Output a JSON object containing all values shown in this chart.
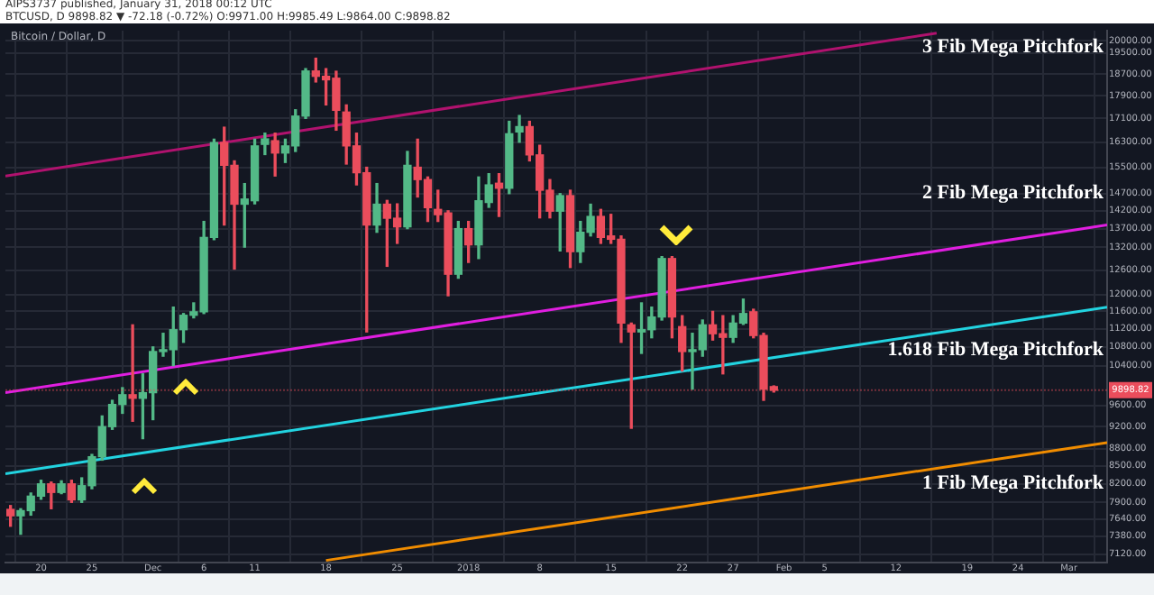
{
  "chart_data": {
    "type": "candlestick",
    "title": "Bitcoin / Dollar, D",
    "annotations": [
      "AIPS3737 published, January 31, 2018 00:12 UTC",
      "BTCUSD, D 9898.82 ▼ -72.18 (-0.72%) O:9971.00 H:9985.49 L:9864.00 C:9898.82",
      "3 Fib Mega Pitchfork",
      "2 Fib Mega Pitchfork",
      "1.618 Fib Mega Pitchfork",
      "1 Fib Mega Pitchfork"
    ],
    "x": [
      "2017-11-17",
      "2017-11-18",
      "2017-11-19",
      "2017-11-20",
      "2017-11-21",
      "2017-11-22",
      "2017-11-23",
      "2017-11-24",
      "2017-11-25",
      "2017-11-26",
      "2017-11-27",
      "2017-11-28",
      "2017-11-29",
      "2017-11-30",
      "2017-12-01",
      "2017-12-02",
      "2017-12-03",
      "2017-12-04",
      "2017-12-05",
      "2017-12-06",
      "2017-12-07",
      "2017-12-08",
      "2017-12-09",
      "2017-12-10",
      "2017-12-11",
      "2017-12-12",
      "2017-12-13",
      "2017-12-14",
      "2017-12-15",
      "2017-12-16",
      "2017-12-17",
      "2017-12-18",
      "2017-12-19",
      "2017-12-20",
      "2017-12-21",
      "2017-12-22",
      "2017-12-23",
      "2017-12-24",
      "2017-12-25",
      "2017-12-26",
      "2017-12-27",
      "2017-12-28",
      "2017-12-29",
      "2017-12-30",
      "2017-12-31",
      "2018-01-01",
      "2018-01-02",
      "2018-01-03",
      "2018-01-04",
      "2018-01-05",
      "2018-01-06",
      "2018-01-07",
      "2018-01-08",
      "2018-01-09",
      "2018-01-10",
      "2018-01-11",
      "2018-01-12",
      "2018-01-13",
      "2018-01-14",
      "2018-01-15",
      "2018-01-16",
      "2018-01-17",
      "2018-01-18",
      "2018-01-19",
      "2018-01-20",
      "2018-01-21",
      "2018-01-22",
      "2018-01-23",
      "2018-01-24",
      "2018-01-25",
      "2018-01-26",
      "2018-01-27",
      "2018-01-28",
      "2018-01-29",
      "2018-01-30",
      "2018-01-31"
    ],
    "ohlc": [
      [
        7790,
        7850,
        7530,
        7690
      ],
      [
        7690,
        7800,
        7410,
        7770
      ],
      [
        7770,
        8050,
        7700,
        8000
      ],
      [
        8000,
        8260,
        7950,
        8200
      ],
      [
        8200,
        8230,
        7800,
        8060
      ],
      [
        8060,
        8250,
        8040,
        8200
      ],
      [
        8200,
        8260,
        7900,
        7940
      ],
      [
        7940,
        8300,
        7900,
        8170
      ],
      [
        8170,
        8700,
        8120,
        8660
      ],
      [
        8660,
        9400,
        8600,
        9200
      ],
      [
        9200,
        9700,
        9150,
        9620
      ],
      [
        9620,
        9950,
        9450,
        9810
      ],
      [
        9810,
        11290,
        9300,
        9740
      ],
      [
        9740,
        10230,
        8980,
        9850
      ],
      [
        9850,
        10800,
        9330,
        10700
      ],
      [
        10700,
        11100,
        10600,
        10740
      ],
      [
        10740,
        11700,
        10400,
        11180
      ],
      [
        11180,
        11550,
        10900,
        11510
      ],
      [
        11510,
        11800,
        11450,
        11590
      ],
      [
        11590,
        13900,
        11550,
        13460
      ],
      [
        13460,
        16400,
        13400,
        16290
      ],
      [
        16290,
        16800,
        13800,
        15560
      ],
      [
        15560,
        15700,
        12630,
        14390
      ],
      [
        14390,
        15000,
        13200,
        14540
      ],
      [
        14490,
        16400,
        14400,
        16180
      ],
      [
        16230,
        16600,
        15900,
        16410
      ],
      [
        16350,
        16600,
        15230,
        15950
      ],
      [
        15950,
        16400,
        15650,
        16180
      ],
      [
        16180,
        17400,
        16000,
        17180
      ],
      [
        17180,
        18900,
        17100,
        18810
      ],
      [
        18810,
        19300,
        18400,
        18610
      ],
      [
        18610,
        18900,
        17570,
        18480
      ],
      [
        18540,
        18800,
        16700,
        17380
      ],
      [
        17320,
        17570,
        15600,
        16180
      ],
      [
        16180,
        16600,
        14960,
        15330
      ],
      [
        15330,
        15500,
        11130,
        13800
      ],
      [
        13800,
        15000,
        13600,
        14390
      ],
      [
        14390,
        14500,
        12700,
        13990
      ],
      [
        13990,
        14400,
        13300,
        13750
      ],
      [
        13750,
        16000,
        13700,
        15560
      ],
      [
        15500,
        16400,
        14600,
        15120
      ],
      [
        15120,
        15200,
        13900,
        14290
      ],
      [
        14240,
        14800,
        13900,
        14090
      ],
      [
        14140,
        14200,
        11970,
        12500
      ],
      [
        12500,
        13900,
        12400,
        13700
      ],
      [
        13700,
        13900,
        12800,
        13260
      ],
      [
        13260,
        15200,
        12900,
        14490
      ],
      [
        14440,
        15300,
        14300,
        14960
      ],
      [
        15010,
        15300,
        14040,
        14860
      ],
      [
        14860,
        17000,
        14700,
        16580
      ],
      [
        16640,
        17200,
        16300,
        16820
      ],
      [
        16820,
        17000,
        15700,
        15890
      ],
      [
        15890,
        16200,
        14000,
        14800
      ],
      [
        14800,
        15120,
        14000,
        14190
      ],
      [
        14190,
        14700,
        13100,
        14640
      ],
      [
        14640,
        14800,
        12670,
        13080
      ],
      [
        13080,
        13900,
        12800,
        13600
      ],
      [
        13600,
        14390,
        13500,
        14040
      ],
      [
        14040,
        14240,
        13300,
        13460
      ],
      [
        13500,
        14100,
        13300,
        13410
      ],
      [
        13410,
        13500,
        10900,
        11330
      ],
      [
        11290,
        11330,
        9170,
        11130
      ],
      [
        11130,
        11800,
        10660,
        11180
      ],
      [
        11180,
        11700,
        11000,
        11470
      ],
      [
        11470,
        12950,
        11400,
        12900
      ],
      [
        12900,
        12950,
        11000,
        11470
      ],
      [
        11250,
        11500,
        10290,
        10700
      ],
      [
        10700,
        11100,
        9920,
        10740
      ],
      [
        10740,
        11400,
        10600,
        11290
      ],
      [
        11290,
        11600,
        10950,
        11090
      ],
      [
        11090,
        11500,
        10230,
        11010
      ],
      [
        11010,
        11500,
        10900,
        11330
      ],
      [
        11330,
        11890,
        11300,
        11550
      ],
      [
        11590,
        11650,
        11000,
        11050
      ],
      [
        11050,
        11100,
        9700,
        9920
      ],
      [
        9971,
        9985.49,
        9864,
        9898.82
      ]
    ],
    "colors": [
      "#eb4d5c",
      "#53b987",
      "#53b987",
      "#53b987",
      "#eb4d5c",
      "#53b987",
      "#eb4d5c",
      "#53b987",
      "#53b987",
      "#53b987",
      "#53b987",
      "#53b987",
      "#eb4d5c",
      "#53b987",
      "#53b987",
      "#53b987",
      "#53b987",
      "#53b987",
      "#53b987",
      "#53b987",
      "#53b987",
      "#eb4d5c",
      "#eb4d5c",
      "#53b987",
      "#53b987",
      "#53b987",
      "#eb4d5c",
      "#53b987",
      "#53b987",
      "#53b987",
      "#eb4d5c",
      "#eb4d5c",
      "#eb4d5c",
      "#eb4d5c",
      "#eb4d5c",
      "#eb4d5c",
      "#53b987",
      "#eb4d5c",
      "#eb4d5c",
      "#53b987",
      "#eb4d5c",
      "#eb4d5c",
      "#eb4d5c",
      "#eb4d5c",
      "#53b987",
      "#eb4d5c",
      "#53b987",
      "#53b987",
      "#eb4d5c",
      "#53b987",
      "#53b987",
      "#eb4d5c",
      "#eb4d5c",
      "#eb4d5c",
      "#53b987",
      "#eb4d5c",
      "#53b987",
      "#53b987",
      "#eb4d5c",
      "#eb4d5c",
      "#eb4d5c",
      "#eb4d5c",
      "#53b987",
      "#53b987",
      "#53b987",
      "#eb4d5c",
      "#eb4d5c",
      "#53b987",
      "#53b987",
      "#eb4d5c",
      "#eb4d5c",
      "#53b987",
      "#53b987",
      "#eb4d5c",
      "#eb4d5c",
      "#eb4d5c"
    ],
    "series": [
      {
        "type": "line",
        "color": "#b0126e",
        "x": [
          "2017-11-16T12:00",
          "2018-02-16"
        ],
        "values": [
          15230,
          20300
        ]
      },
      {
        "type": "line",
        "color": "#e01ee0",
        "x": [
          "2017-11-16T12:00",
          "2018-03-04T18:00"
        ],
        "values": [
          9850,
          13800
        ]
      },
      {
        "type": "line",
        "color": "#22d3e0",
        "x": [
          "2017-11-16T12:00",
          "2018-03-04T18:00"
        ],
        "values": [
          8370,
          11700
        ]
      },
      {
        "type": "line",
        "color": "#f08c00",
        "x": [
          "2017-12-18",
          "2018-03-04T18:00"
        ],
        "values": [
          7030,
          8910
        ]
      }
    ],
    "xlim": [
      "2017-11-16T12:00",
      "2018-03-04T18:00"
    ],
    "xticks": [
      {
        "value": "2017-11-20",
        "label": "20"
      },
      {
        "value": "2017-11-25",
        "label": "25"
      },
      {
        "value": "2017-12-01",
        "label": "Dec"
      },
      {
        "value": "2017-12-06",
        "label": "6"
      },
      {
        "value": "2017-12-11",
        "label": "11"
      },
      {
        "value": "2017-12-18",
        "label": "18"
      },
      {
        "value": "2017-12-25",
        "label": "25"
      },
      {
        "value": "2018-01-01",
        "label": "2018"
      },
      {
        "value": "2018-01-08",
        "label": "8"
      },
      {
        "value": "2018-01-15",
        "label": "15"
      },
      {
        "value": "2018-01-22",
        "label": "22"
      },
      {
        "value": "2018-01-27",
        "label": "27"
      },
      {
        "value": "2018-02-01",
        "label": "Feb"
      },
      {
        "value": "2018-02-05",
        "label": "5"
      },
      {
        "value": "2018-02-12",
        "label": "12"
      },
      {
        "value": "2018-02-19",
        "label": "19"
      },
      {
        "value": "2018-02-24",
        "label": "24"
      },
      {
        "value": "2018-03-01",
        "label": "Mar"
      }
    ],
    "ylim": [
      7000,
      20400
    ],
    "log": true,
    "yticks": [
      {
        "value": 20000,
        "label": "20000.00"
      },
      {
        "value": 19500,
        "label": "19500.00"
      },
      {
        "value": 18700,
        "label": "18700.00"
      },
      {
        "value": 17900,
        "label": "17900.00"
      },
      {
        "value": 17100,
        "label": "17100.00"
      },
      {
        "value": 16300,
        "label": "16300.00"
      },
      {
        "value": 15500,
        "label": "15500.00"
      },
      {
        "value": 14700,
        "label": "14700.00"
      },
      {
        "value": 14200,
        "label": "14200.00"
      },
      {
        "value": 13700,
        "label": "13700.00"
      },
      {
        "value": 13200,
        "label": "13200.00"
      },
      {
        "value": 12600,
        "label": "12600.00"
      },
      {
        "value": 12000,
        "label": "12000.00"
      },
      {
        "value": 11600,
        "label": "11600.00"
      },
      {
        "value": 11200,
        "label": "11200.00"
      },
      {
        "value": 10800,
        "label": "10800.00"
      },
      {
        "value": 10400,
        "label": "10400.00"
      },
      {
        "value": 9600,
        "label": "9600.00"
      },
      {
        "value": 9200,
        "label": "9200.00"
      },
      {
        "value": 8800,
        "label": "8800.00"
      },
      {
        "value": 8500,
        "label": "8500.00"
      },
      {
        "value": 8200,
        "label": "8200.00"
      },
      {
        "value": 7900,
        "label": "7900.00"
      },
      {
        "value": 7640,
        "label": "7640.00"
      },
      {
        "value": 7380,
        "label": "7380.00"
      },
      {
        "value": 7120,
        "label": "7120.00"
      }
    ],
    "grid": true,
    "ref_lines": [
      {
        "axis": "y",
        "value": 9898.82,
        "label": "9898.82",
        "color": "#eb4d5c"
      }
    ]
  }
}
